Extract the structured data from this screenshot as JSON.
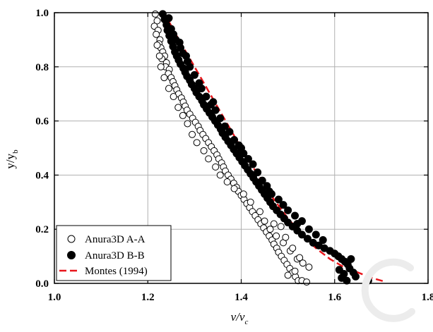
{
  "chart_data": {
    "type": "scatter",
    "title": "",
    "xlabel": {
      "main": "v/v",
      "sub": "c"
    },
    "ylabel": {
      "main": "y/y",
      "sub": "b"
    },
    "xlim": [
      1.0,
      1.8
    ],
    "ylim": [
      0.0,
      1.0
    ],
    "xticks": [
      "1.0",
      "1.2",
      "1.4",
      "1.6",
      "1.8"
    ],
    "yticks": [
      "0.0",
      "0.2",
      "0.4",
      "0.6",
      "0.8",
      "1.0"
    ],
    "grid": true,
    "legend_position": "bottom-left",
    "colors": {
      "open_marker": "#ffffff",
      "filled_marker": "#000000",
      "line": "#e8161b",
      "grid": "#b0b0b0"
    },
    "series": [
      {
        "name": "Anura3D A-A",
        "style": "open-circle",
        "points": [
          [
            1.216,
            0.995
          ],
          [
            1.22,
            0.97
          ],
          [
            1.214,
            0.95
          ],
          [
            1.222,
            0.935
          ],
          [
            1.218,
            0.92
          ],
          [
            1.226,
            0.9
          ],
          [
            1.224,
            0.885
          ],
          [
            1.228,
            0.87
          ],
          [
            1.232,
            0.855
          ],
          [
            1.236,
            0.84
          ],
          [
            1.23,
            0.83
          ],
          [
            1.24,
            0.815
          ],
          [
            1.238,
            0.8
          ],
          [
            1.246,
            0.79
          ],
          [
            1.244,
            0.775
          ],
          [
            1.25,
            0.76
          ],
          [
            1.254,
            0.745
          ],
          [
            1.258,
            0.73
          ],
          [
            1.262,
            0.715
          ],
          [
            1.266,
            0.7
          ],
          [
            1.272,
            0.685
          ],
          [
            1.276,
            0.67
          ],
          [
            1.28,
            0.655
          ],
          [
            1.284,
            0.64
          ],
          [
            1.29,
            0.625
          ],
          [
            1.296,
            0.61
          ],
          [
            1.302,
            0.595
          ],
          [
            1.308,
            0.58
          ],
          [
            1.312,
            0.565
          ],
          [
            1.318,
            0.55
          ],
          [
            1.324,
            0.535
          ],
          [
            1.33,
            0.52
          ],
          [
            1.336,
            0.505
          ],
          [
            1.342,
            0.49
          ],
          [
            1.348,
            0.475
          ],
          [
            1.352,
            0.46
          ],
          [
            1.358,
            0.445
          ],
          [
            1.362,
            0.43
          ],
          [
            1.366,
            0.415
          ],
          [
            1.372,
            0.4
          ],
          [
            1.378,
            0.385
          ],
          [
            1.384,
            0.37
          ],
          [
            1.39,
            0.355
          ],
          [
            1.394,
            0.34
          ],
          [
            1.4,
            0.325
          ],
          [
            1.406,
            0.31
          ],
          [
            1.412,
            0.295
          ],
          [
            1.418,
            0.28
          ],
          [
            1.424,
            0.265
          ],
          [
            1.43,
            0.25
          ],
          [
            1.436,
            0.235
          ],
          [
            1.442,
            0.22
          ],
          [
            1.448,
            0.205
          ],
          [
            1.454,
            0.19
          ],
          [
            1.46,
            0.175
          ],
          [
            1.466,
            0.16
          ],
          [
            1.47,
            0.145
          ],
          [
            1.476,
            0.13
          ],
          [
            1.48,
            0.115
          ],
          [
            1.486,
            0.1
          ],
          [
            1.492,
            0.085
          ],
          [
            1.498,
            0.07
          ],
          [
            1.504,
            0.055
          ],
          [
            1.51,
            0.04
          ],
          [
            1.516,
            0.025
          ],
          [
            1.522,
            0.01
          ],
          [
            1.53,
            0.01
          ],
          [
            1.54,
            0.005
          ],
          [
            1.545,
            0.06
          ],
          [
            1.532,
            0.075
          ],
          [
            1.52,
            0.09
          ],
          [
            1.505,
            0.12
          ],
          [
            1.49,
            0.15
          ],
          [
            1.475,
            0.175
          ],
          [
            1.462,
            0.2
          ],
          [
            1.45,
            0.23
          ],
          [
            1.485,
            0.21
          ],
          [
            1.495,
            0.17
          ],
          [
            1.51,
            0.13
          ],
          [
            1.525,
            0.095
          ],
          [
            1.5,
            0.03
          ],
          [
            1.515,
            0.045
          ],
          [
            1.47,
            0.22
          ],
          [
            1.44,
            0.265
          ],
          [
            1.42,
            0.3
          ],
          [
            1.405,
            0.33
          ],
          [
            1.385,
            0.35
          ],
          [
            1.37,
            0.375
          ],
          [
            1.355,
            0.4
          ],
          [
            1.345,
            0.43
          ],
          [
            1.33,
            0.46
          ],
          [
            1.32,
            0.49
          ],
          [
            1.305,
            0.52
          ],
          [
            1.295,
            0.55
          ],
          [
            1.285,
            0.59
          ],
          [
            1.275,
            0.62
          ],
          [
            1.265,
            0.65
          ],
          [
            1.255,
            0.69
          ],
          [
            1.245,
            0.72
          ],
          [
            1.235,
            0.76
          ],
          [
            1.228,
            0.8
          ],
          [
            1.225,
            0.84
          ],
          [
            1.22,
            0.88
          ]
        ]
      },
      {
        "name": "Anura3D B-B",
        "style": "filled-circle",
        "points": [
          [
            1.232,
            0.995
          ],
          [
            1.236,
            0.975
          ],
          [
            1.24,
            0.955
          ],
          [
            1.242,
            0.935
          ],
          [
            1.246,
            0.915
          ],
          [
            1.25,
            0.895
          ],
          [
            1.254,
            0.875
          ],
          [
            1.258,
            0.855
          ],
          [
            1.262,
            0.84
          ],
          [
            1.266,
            0.825
          ],
          [
            1.27,
            0.81
          ],
          [
            1.276,
            0.795
          ],
          [
            1.28,
            0.78
          ],
          [
            1.284,
            0.765
          ],
          [
            1.29,
            0.75
          ],
          [
            1.294,
            0.735
          ],
          [
            1.3,
            0.72
          ],
          [
            1.304,
            0.705
          ],
          [
            1.31,
            0.69
          ],
          [
            1.316,
            0.675
          ],
          [
            1.32,
            0.66
          ],
          [
            1.326,
            0.645
          ],
          [
            1.332,
            0.63
          ],
          [
            1.338,
            0.615
          ],
          [
            1.344,
            0.6
          ],
          [
            1.35,
            0.585
          ],
          [
            1.356,
            0.57
          ],
          [
            1.36,
            0.555
          ],
          [
            1.366,
            0.54
          ],
          [
            1.372,
            0.525
          ],
          [
            1.378,
            0.51
          ],
          [
            1.384,
            0.495
          ],
          [
            1.39,
            0.48
          ],
          [
            1.396,
            0.465
          ],
          [
            1.402,
            0.45
          ],
          [
            1.408,
            0.435
          ],
          [
            1.414,
            0.42
          ],
          [
            1.42,
            0.405
          ],
          [
            1.426,
            0.39
          ],
          [
            1.432,
            0.375
          ],
          [
            1.438,
            0.36
          ],
          [
            1.444,
            0.345
          ],
          [
            1.45,
            0.33
          ],
          [
            1.456,
            0.315
          ],
          [
            1.462,
            0.3
          ],
          [
            1.468,
            0.285
          ],
          [
            1.476,
            0.27
          ],
          [
            1.484,
            0.255
          ],
          [
            1.492,
            0.24
          ],
          [
            1.5,
            0.225
          ],
          [
            1.51,
            0.21
          ],
          [
            1.52,
            0.195
          ],
          [
            1.53,
            0.18
          ],
          [
            1.542,
            0.165
          ],
          [
            1.554,
            0.15
          ],
          [
            1.566,
            0.14
          ],
          [
            1.578,
            0.13
          ],
          [
            1.59,
            0.12
          ],
          [
            1.6,
            0.11
          ],
          [
            1.608,
            0.1
          ],
          [
            1.615,
            0.09
          ],
          [
            1.622,
            0.08
          ],
          [
            1.628,
            0.07
          ],
          [
            1.632,
            0.055
          ],
          [
            1.64,
            0.04
          ],
          [
            1.645,
            0.025
          ],
          [
            1.626,
            0.01
          ],
          [
            1.615,
            0.02
          ],
          [
            1.62,
            0.035
          ],
          [
            1.635,
            0.09
          ],
          [
            1.61,
            0.05
          ],
          [
            1.672,
            0.01
          ],
          [
            1.25,
            0.94
          ],
          [
            1.255,
            0.92
          ],
          [
            1.26,
            0.9
          ],
          [
            1.27,
            0.87
          ],
          [
            1.275,
            0.85
          ],
          [
            1.285,
            0.82
          ],
          [
            1.29,
            0.8
          ],
          [
            1.3,
            0.77
          ],
          [
            1.31,
            0.74
          ],
          [
            1.315,
            0.72
          ],
          [
            1.325,
            0.69
          ],
          [
            1.335,
            0.66
          ],
          [
            1.345,
            0.64
          ],
          [
            1.355,
            0.61
          ],
          [
            1.365,
            0.58
          ],
          [
            1.375,
            0.56
          ],
          [
            1.385,
            0.53
          ],
          [
            1.395,
            0.51
          ],
          [
            1.405,
            0.48
          ],
          [
            1.415,
            0.46
          ],
          [
            1.425,
            0.44
          ],
          [
            1.435,
            0.41
          ],
          [
            1.445,
            0.38
          ],
          [
            1.455,
            0.36
          ],
          [
            1.465,
            0.33
          ],
          [
            1.48,
            0.31
          ],
          [
            1.49,
            0.29
          ],
          [
            1.5,
            0.27
          ],
          [
            1.515,
            0.25
          ],
          [
            1.53,
            0.23
          ],
          [
            1.545,
            0.2
          ],
          [
            1.56,
            0.18
          ],
          [
            1.575,
            0.16
          ],
          [
            1.245,
            0.98
          ],
          [
            1.268,
            0.89
          ],
          [
            1.282,
            0.84
          ],
          [
            1.34,
            0.67
          ],
          [
            1.4,
            0.5
          ],
          [
            1.46,
            0.34
          ],
          [
            1.52,
            0.22
          ]
        ]
      },
      {
        "name": "Montes (1994)",
        "style": "dashed-line",
        "points": [
          [
            1.235,
            1.0
          ],
          [
            1.26,
            0.92
          ],
          [
            1.29,
            0.83
          ],
          [
            1.32,
            0.74
          ],
          [
            1.35,
            0.65
          ],
          [
            1.38,
            0.56
          ],
          [
            1.41,
            0.47
          ],
          [
            1.44,
            0.39
          ],
          [
            1.47,
            0.31
          ],
          [
            1.5,
            0.24
          ],
          [
            1.53,
            0.18
          ],
          [
            1.56,
            0.13
          ],
          [
            1.59,
            0.09
          ],
          [
            1.62,
            0.06
          ],
          [
            1.65,
            0.04
          ],
          [
            1.68,
            0.02
          ],
          [
            1.71,
            0.005
          ]
        ]
      }
    ]
  }
}
